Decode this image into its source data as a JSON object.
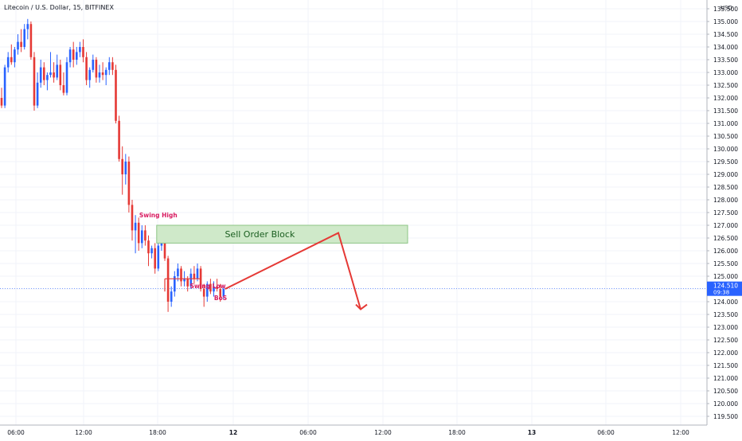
{
  "chart_data": {
    "type": "candlestick",
    "title": "Litecoin / U.S. Dollar, 15, BITFINEX",
    "currency": "USD",
    "y_ticks": [
      119.5,
      120.0,
      120.5,
      121.0,
      121.5,
      122.0,
      122.5,
      123.0,
      123.5,
      124.0,
      124.5,
      125.0,
      125.5,
      126.0,
      126.5,
      127.0,
      127.5,
      128.0,
      128.5,
      129.0,
      129.5,
      130.0,
      130.5,
      131.0,
      131.5,
      132.0,
      132.5,
      133.0,
      133.5,
      134.0,
      134.5,
      135.0,
      135.5
    ],
    "ylim": [
      119.2,
      135.7
    ],
    "x_ticks": [
      "06:00",
      "12:00",
      "18:00",
      "12",
      "06:00",
      "12:00",
      "18:00",
      "13",
      "06:00",
      "12:00"
    ],
    "current_price": "124.510",
    "countdown": "09:38",
    "colors": {
      "up": "#2962ff",
      "down": "#e53935",
      "annotation": "#e53935",
      "zone_fill": "#cfe9c9",
      "zone_border": "#8cc585",
      "zone_text": "#1b5e20",
      "label_pink": "#d81b60",
      "price_tag": "#2962ff"
    },
    "candles": [
      {
        "o": 132.0,
        "h": 132.4,
        "l": 131.6,
        "c": 131.7
      },
      {
        "o": 131.7,
        "h": 133.3,
        "l": 131.6,
        "c": 133.2
      },
      {
        "o": 133.2,
        "h": 133.8,
        "l": 133.0,
        "c": 133.6
      },
      {
        "o": 133.6,
        "h": 134.1,
        "l": 133.3,
        "c": 133.4
      },
      {
        "o": 133.4,
        "h": 134.0,
        "l": 133.2,
        "c": 133.9
      },
      {
        "o": 133.9,
        "h": 134.5,
        "l": 133.7,
        "c": 134.2
      },
      {
        "o": 134.2,
        "h": 134.7,
        "l": 133.8,
        "c": 134.0
      },
      {
        "o": 134.0,
        "h": 134.9,
        "l": 133.9,
        "c": 134.7
      },
      {
        "o": 134.7,
        "h": 135.1,
        "l": 134.3,
        "c": 134.9
      },
      {
        "o": 134.9,
        "h": 135.0,
        "l": 133.5,
        "c": 133.6
      },
      {
        "o": 133.6,
        "h": 133.8,
        "l": 131.5,
        "c": 131.7
      },
      {
        "o": 131.7,
        "h": 133.0,
        "l": 131.6,
        "c": 132.6
      },
      {
        "o": 132.6,
        "h": 133.5,
        "l": 132.4,
        "c": 133.2
      },
      {
        "o": 133.2,
        "h": 133.4,
        "l": 132.5,
        "c": 132.7
      },
      {
        "o": 132.7,
        "h": 133.0,
        "l": 132.3,
        "c": 132.9
      },
      {
        "o": 132.9,
        "h": 133.8,
        "l": 132.8,
        "c": 133.0
      },
      {
        "o": 133.0,
        "h": 133.4,
        "l": 132.6,
        "c": 132.8
      },
      {
        "o": 132.8,
        "h": 133.7,
        "l": 132.7,
        "c": 133.3
      },
      {
        "o": 133.3,
        "h": 133.5,
        "l": 132.3,
        "c": 132.5
      },
      {
        "o": 132.5,
        "h": 133.0,
        "l": 132.1,
        "c": 132.2
      },
      {
        "o": 132.2,
        "h": 133.6,
        "l": 132.1,
        "c": 133.4
      },
      {
        "o": 133.4,
        "h": 134.0,
        "l": 133.2,
        "c": 133.9
      },
      {
        "o": 133.9,
        "h": 134.2,
        "l": 133.2,
        "c": 133.5
      },
      {
        "o": 133.5,
        "h": 134.0,
        "l": 133.3,
        "c": 133.8
      },
      {
        "o": 133.8,
        "h": 134.2,
        "l": 133.6,
        "c": 134.0
      },
      {
        "o": 134.0,
        "h": 134.3,
        "l": 133.4,
        "c": 133.6
      },
      {
        "o": 133.6,
        "h": 133.8,
        "l": 132.5,
        "c": 132.7
      },
      {
        "o": 132.7,
        "h": 133.2,
        "l": 132.4,
        "c": 133.1
      },
      {
        "o": 133.1,
        "h": 133.7,
        "l": 133.0,
        "c": 133.5
      },
      {
        "o": 133.5,
        "h": 133.6,
        "l": 132.6,
        "c": 132.8
      },
      {
        "o": 132.8,
        "h": 133.3,
        "l": 132.6,
        "c": 133.0
      },
      {
        "o": 133.0,
        "h": 133.4,
        "l": 132.7,
        "c": 132.9
      },
      {
        "o": 132.9,
        "h": 133.2,
        "l": 132.5,
        "c": 133.1
      },
      {
        "o": 133.1,
        "h": 133.6,
        "l": 132.9,
        "c": 133.4
      },
      {
        "o": 133.4,
        "h": 133.6,
        "l": 132.9,
        "c": 133.1
      },
      {
        "o": 133.1,
        "h": 133.3,
        "l": 131.0,
        "c": 131.1
      },
      {
        "o": 131.1,
        "h": 131.3,
        "l": 129.5,
        "c": 129.6
      },
      {
        "o": 129.6,
        "h": 130.1,
        "l": 128.2,
        "c": 129.0
      },
      {
        "o": 129.0,
        "h": 129.8,
        "l": 128.6,
        "c": 129.5
      },
      {
        "o": 129.5,
        "h": 129.7,
        "l": 127.5,
        "c": 127.8
      },
      {
        "o": 127.8,
        "h": 128.0,
        "l": 126.4,
        "c": 126.8
      },
      {
        "o": 126.8,
        "h": 127.4,
        "l": 125.9,
        "c": 127.1
      },
      {
        "o": 127.1,
        "h": 127.3,
        "l": 126.0,
        "c": 126.3
      },
      {
        "o": 126.3,
        "h": 127.0,
        "l": 126.1,
        "c": 126.8
      },
      {
        "o": 126.8,
        "h": 127.0,
        "l": 126.2,
        "c": 126.4
      },
      {
        "o": 126.4,
        "h": 126.6,
        "l": 125.4,
        "c": 125.9
      },
      {
        "o": 125.9,
        "h": 126.2,
        "l": 125.7,
        "c": 126.1
      },
      {
        "o": 126.1,
        "h": 126.3,
        "l": 125.1,
        "c": 125.3
      },
      {
        "o": 125.3,
        "h": 126.4,
        "l": 125.2,
        "c": 126.2
      },
      {
        "o": 126.2,
        "h": 126.9,
        "l": 126.0,
        "c": 126.6
      },
      {
        "o": 126.6,
        "h": 126.7,
        "l": 125.6,
        "c": 125.7
      },
      {
        "o": 125.7,
        "h": 125.8,
        "l": 123.6,
        "c": 124.0
      },
      {
        "o": 124.0,
        "h": 124.6,
        "l": 123.8,
        "c": 124.4
      },
      {
        "o": 124.4,
        "h": 125.2,
        "l": 124.2,
        "c": 125.0
      },
      {
        "o": 125.0,
        "h": 125.5,
        "l": 124.8,
        "c": 125.3
      },
      {
        "o": 125.3,
        "h": 125.4,
        "l": 124.6,
        "c": 124.8
      },
      {
        "o": 124.8,
        "h": 125.2,
        "l": 124.6,
        "c": 124.9
      },
      {
        "o": 124.9,
        "h": 125.0,
        "l": 124.4,
        "c": 124.6
      },
      {
        "o": 124.6,
        "h": 125.3,
        "l": 124.5,
        "c": 125.1
      },
      {
        "o": 125.1,
        "h": 125.4,
        "l": 124.7,
        "c": 124.9
      },
      {
        "o": 124.9,
        "h": 125.5,
        "l": 124.8,
        "c": 125.3
      },
      {
        "o": 125.3,
        "h": 125.4,
        "l": 124.4,
        "c": 124.5
      },
      {
        "o": 124.5,
        "h": 124.7,
        "l": 123.8,
        "c": 124.2
      },
      {
        "o": 124.2,
        "h": 124.8,
        "l": 124.0,
        "c": 124.7
      },
      {
        "o": 124.7,
        "h": 124.9,
        "l": 124.3,
        "c": 124.4
      },
      {
        "o": 124.4,
        "h": 124.8,
        "l": 124.2,
        "c": 124.6
      },
      {
        "o": 124.6,
        "h": 124.9,
        "l": 124.4,
        "c": 124.5
      },
      {
        "o": 124.5,
        "h": 124.7,
        "l": 124.0,
        "c": 124.2
      },
      {
        "o": 124.2,
        "h": 124.6,
        "l": 124.1,
        "c": 124.5
      }
    ],
    "annotations": {
      "swing_high": "Swing High",
      "swing_low": "Swing Low",
      "bos": "BoS",
      "order_block": "Sell Order Block",
      "order_block_top": 127.0,
      "order_block_bottom": 126.3,
      "swing_low_price": 124.9,
      "projection": [
        [
          0,
          124.5
        ],
        [
          1,
          126.7
        ],
        [
          2,
          123.7
        ]
      ]
    }
  }
}
